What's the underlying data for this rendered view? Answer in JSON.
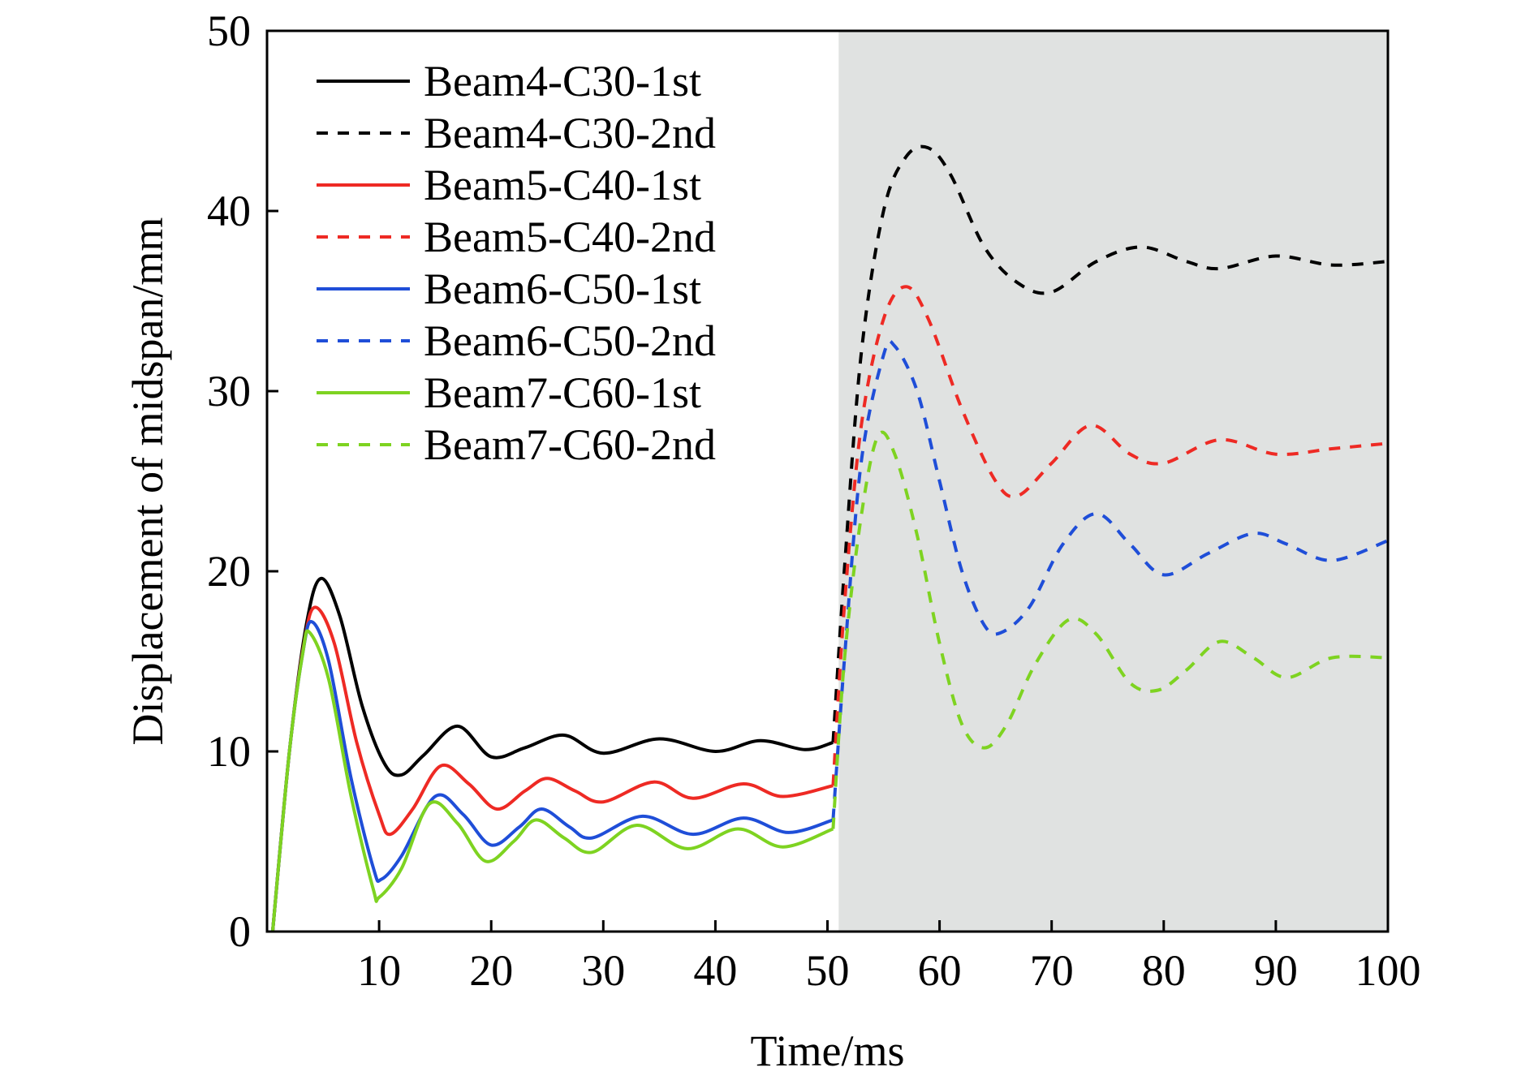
{
  "chart_data": {
    "type": "line",
    "xlabel": "Time/ms",
    "ylabel": "Displacement of midspan/mm",
    "xlim": [
      0,
      100
    ],
    "ylim": [
      0,
      50
    ],
    "xticks": [
      10,
      20,
      30,
      40,
      50,
      60,
      70,
      80,
      90,
      100
    ],
    "yticks": [
      0,
      10,
      20,
      30,
      40,
      50
    ],
    "grid": false,
    "legend_position": "top-left",
    "shaded_region": {
      "x_start": 51,
      "x_end": 100,
      "color": "#e0e2e1"
    },
    "series": [
      {
        "name": "Beam4-C30-1st",
        "color": "#000000",
        "dash": "solid",
        "x": [
          0.5,
          2,
          3.5,
          4.8,
          6.5,
          8.5,
          10.5,
          12,
          14,
          17,
          20,
          23,
          26.5,
          30,
          35,
          40,
          44,
          48,
          50.5
        ],
        "y": [
          0,
          10,
          17,
          19.6,
          17.5,
          12.5,
          9.3,
          8.7,
          9.8,
          11.4,
          9.7,
          10.2,
          10.9,
          9.9,
          10.7,
          10.0,
          10.6,
          10.1,
          10.5
        ]
      },
      {
        "name": "Beam4-C30-2nd",
        "color": "#000000",
        "dash": "dashed",
        "x": [
          50.5,
          51.5,
          53,
          55,
          57,
          59,
          61,
          64,
          67,
          70,
          74,
          78,
          82,
          85,
          90,
          95,
          100
        ],
        "y": [
          10.5,
          20,
          32,
          40,
          43,
          43.5,
          42,
          38,
          36,
          35.5,
          37.2,
          38,
          37.2,
          36.8,
          37.5,
          37,
          37.2
        ]
      },
      {
        "name": "Beam5-C40-1st",
        "color": "#ee2a24",
        "dash": "solid",
        "x": [
          0.5,
          2,
          3.3,
          4.3,
          6,
          8,
          10,
          11,
          13,
          15.5,
          18,
          20.5,
          23,
          25,
          27.5,
          30,
          34.5,
          38,
          42.5,
          46,
          50.5
        ],
        "y": [
          0,
          10,
          16,
          18,
          16,
          10.5,
          6.5,
          5.4,
          6.8,
          9.2,
          8.2,
          6.8,
          7.8,
          8.5,
          7.8,
          7.2,
          8.3,
          7.4,
          8.2,
          7.5,
          8.1
        ]
      },
      {
        "name": "Beam5-C40-2nd",
        "color": "#ee2a24",
        "dash": "dashed",
        "x": [
          50.5,
          51.5,
          53,
          55,
          57,
          59,
          62,
          65,
          67,
          70,
          73.5,
          77,
          80,
          85,
          90,
          95,
          100
        ],
        "y": [
          8.1,
          18,
          28,
          34,
          35.8,
          34,
          29,
          25,
          24.2,
          26,
          28.1,
          26.5,
          26,
          27.3,
          26.5,
          26.8,
          27.1
        ]
      },
      {
        "name": "Beam6-C50-1st",
        "color": "#1f4ed8",
        "dash": "solid",
        "x": [
          0.5,
          2,
          3.2,
          4,
          5.5,
          7.5,
          9.5,
          10.2,
          12,
          15,
          17.5,
          20,
          22.5,
          24.5,
          27,
          29,
          33.5,
          38,
          42.5,
          46.5,
          50.5
        ],
        "y": [
          0,
          10,
          15.5,
          17.2,
          15,
          8.5,
          3.5,
          2.9,
          4.2,
          7.5,
          6.5,
          4.8,
          5.8,
          6.8,
          5.8,
          5.2,
          6.4,
          5.4,
          6.3,
          5.5,
          6.2
        ]
      },
      {
        "name": "Beam6-C50-2nd",
        "color": "#1f4ed8",
        "dash": "dashed",
        "x": [
          50.5,
          51.5,
          53,
          55,
          56,
          58,
          60,
          62,
          64,
          65.5,
          68,
          71,
          74,
          77,
          80,
          84,
          88,
          91,
          95,
          100
        ],
        "y": [
          6.2,
          15,
          26,
          32,
          32.5,
          30,
          25,
          20,
          17,
          16.6,
          18,
          21.5,
          23.2,
          21.5,
          19.8,
          21,
          22.1,
          21.5,
          20.6,
          21.7
        ]
      },
      {
        "name": "Beam7-C60-1st",
        "color": "#7ed321",
        "dash": "solid",
        "x": [
          0.5,
          2,
          3.2,
          3.8,
          5.5,
          7.5,
          9.5,
          10,
          12,
          14.5,
          17,
          19.5,
          22,
          24,
          26.5,
          29,
          33,
          37.5,
          42,
          46,
          50.5
        ],
        "y": [
          0,
          10,
          15.5,
          16.6,
          14,
          7.5,
          2.3,
          1.9,
          3.5,
          7.1,
          6.0,
          3.9,
          5.0,
          6.2,
          5.2,
          4.4,
          5.9,
          4.6,
          5.7,
          4.7,
          5.7
        ]
      },
      {
        "name": "Beam7-C60-2nd",
        "color": "#7ed321",
        "dash": "dashed",
        "x": [
          50.5,
          51.5,
          53,
          54.5,
          56,
          58,
          60,
          62,
          64,
          66,
          68.5,
          71.5,
          74,
          77,
          79.5,
          82,
          85,
          88,
          91,
          95,
          100
        ],
        "y": [
          5.7,
          15,
          23,
          27.5,
          26.5,
          22,
          16,
          11.5,
          10.2,
          11.5,
          14.8,
          17.3,
          16.5,
          13.8,
          13.4,
          14.5,
          16.1,
          15.2,
          14.1,
          15.2,
          15.2
        ]
      }
    ]
  }
}
